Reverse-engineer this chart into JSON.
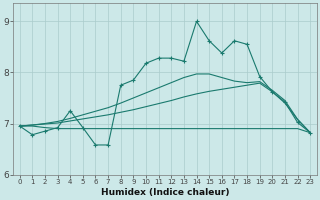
{
  "xlabel": "Humidex (Indice chaleur)",
  "xlim": [
    -0.5,
    23.5
  ],
  "ylim": [
    6.0,
    9.35
  ],
  "yticks": [
    6,
    7,
    8,
    9
  ],
  "xtick_labels": [
    "0",
    "1",
    "2",
    "3",
    "4",
    "5",
    "6",
    "7",
    "8",
    "9",
    "10",
    "11",
    "12",
    "13",
    "14",
    "15",
    "16",
    "17",
    "18",
    "19",
    "20",
    "21",
    "22",
    "23"
  ],
  "background_color": "#cce8e8",
  "grid_color": "#aacccc",
  "line_color": "#1a7a6e",
  "series": {
    "line_wiggly": [
      6.95,
      6.78,
      6.85,
      6.92,
      7.25,
      6.92,
      6.58,
      6.58,
      7.75,
      7.85,
      8.18,
      8.28,
      8.28,
      8.22,
      9.0,
      8.62,
      8.38,
      8.62,
      8.55,
      7.92,
      7.62,
      7.42,
      7.02,
      6.82
    ],
    "line_flat": [
      6.95,
      6.95,
      6.92,
      6.9,
      6.9,
      6.9,
      6.9,
      6.9,
      6.9,
      6.9,
      6.9,
      6.9,
      6.9,
      6.9,
      6.9,
      6.9,
      6.9,
      6.9,
      6.9,
      6.9,
      6.9,
      6.9,
      6.9,
      6.82
    ],
    "line_diag1": [
      6.95,
      6.97,
      6.99,
      7.01,
      7.05,
      7.09,
      7.13,
      7.17,
      7.22,
      7.27,
      7.33,
      7.39,
      7.45,
      7.52,
      7.58,
      7.63,
      7.67,
      7.71,
      7.75,
      7.79,
      7.62,
      7.4,
      7.08,
      6.82
    ],
    "line_diag2": [
      6.95,
      6.97,
      7.0,
      7.04,
      7.1,
      7.17,
      7.24,
      7.31,
      7.4,
      7.5,
      7.6,
      7.7,
      7.8,
      7.9,
      7.97,
      7.97,
      7.9,
      7.83,
      7.8,
      7.82,
      7.65,
      7.45,
      7.08,
      6.82
    ]
  }
}
